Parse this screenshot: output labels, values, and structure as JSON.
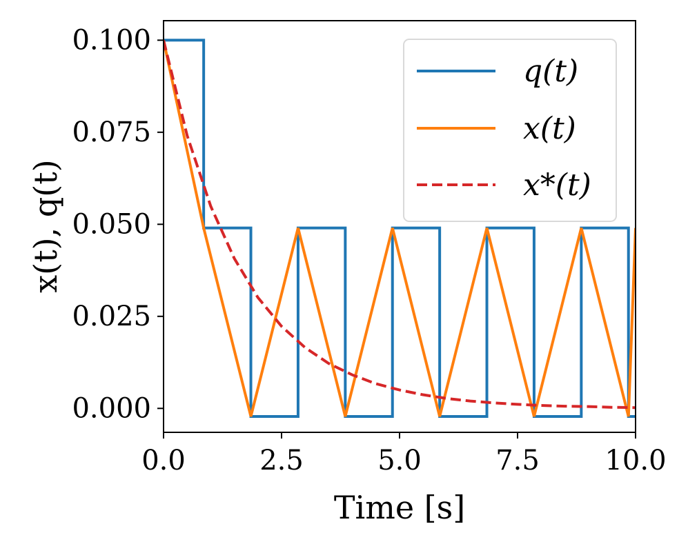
{
  "chart_data": {
    "type": "line",
    "title": "",
    "xlabel": "Time [s]",
    "ylabel": "x(t), q(t)",
    "xlim": [
      0,
      10
    ],
    "ylim": [
      -0.0065,
      0.1053
    ],
    "grid": false,
    "legend_position": "top-right",
    "x_ticks": [
      {
        "value": 0,
        "label": "0.0"
      },
      {
        "value": 2.5,
        "label": "2.5"
      },
      {
        "value": 5,
        "label": "5.0"
      },
      {
        "value": 7.5,
        "label": "7.5"
      },
      {
        "value": 10,
        "label": "10.0"
      }
    ],
    "y_ticks": [
      {
        "value": 0.0,
        "label": "0.000"
      },
      {
        "value": 0.025,
        "label": "0.025"
      },
      {
        "value": 0.05,
        "label": "0.050"
      },
      {
        "value": 0.075,
        "label": "0.075"
      },
      {
        "value": 0.1,
        "label": "0.100"
      }
    ],
    "series": [
      {
        "name": "q(t)",
        "label": "q(t)",
        "color": "#1f77b4",
        "style": "solid",
        "step": true,
        "x": [
          0,
          0.85,
          0.85,
          1.85,
          1.85,
          2.85,
          2.85,
          3.85,
          3.85,
          4.85,
          4.85,
          5.85,
          5.85,
          6.85,
          6.85,
          7.85,
          7.85,
          8.85,
          8.85,
          9.85,
          9.85,
          10.0
        ],
        "y": [
          0.1,
          0.1,
          0.049,
          0.049,
          -0.0022,
          -0.0022,
          0.049,
          0.049,
          -0.0022,
          -0.0022,
          0.049,
          0.049,
          -0.0022,
          -0.0022,
          0.049,
          0.049,
          -0.0022,
          -0.0022,
          0.049,
          0.049,
          -0.0022,
          -0.0022
        ]
      },
      {
        "name": "x(t)",
        "label": "x(t)",
        "color": "#ff7f0e",
        "style": "solid",
        "step": false,
        "x": [
          0,
          0.85,
          1.85,
          2.85,
          3.85,
          4.85,
          5.85,
          6.85,
          7.85,
          8.85,
          9.85,
          10.0
        ],
        "y": [
          0.1,
          0.049,
          -0.0022,
          0.049,
          -0.0022,
          0.049,
          -0.0022,
          0.049,
          -0.0022,
          0.049,
          -0.0022,
          0.049
        ]
      },
      {
        "name": "x*(t)",
        "label": "x*(t)",
        "color": "#d62728",
        "style": "dashed",
        "step": false,
        "x": [
          0,
          0.5,
          1.0,
          1.5,
          2.0,
          2.5,
          3.0,
          3.5,
          4.0,
          4.5,
          5.0,
          5.5,
          6.0,
          6.5,
          7.0,
          7.5,
          8.0,
          8.5,
          9.0,
          9.5,
          10.0
        ],
        "y": [
          0.1,
          0.0741,
          0.0549,
          0.0407,
          0.0301,
          0.0223,
          0.0165,
          0.0122,
          0.0091,
          0.0067,
          0.005,
          0.0037,
          0.0027,
          0.002,
          0.0015,
          0.0011,
          0.0008,
          0.0006,
          0.0005,
          0.0003,
          0.0002
        ]
      }
    ]
  }
}
